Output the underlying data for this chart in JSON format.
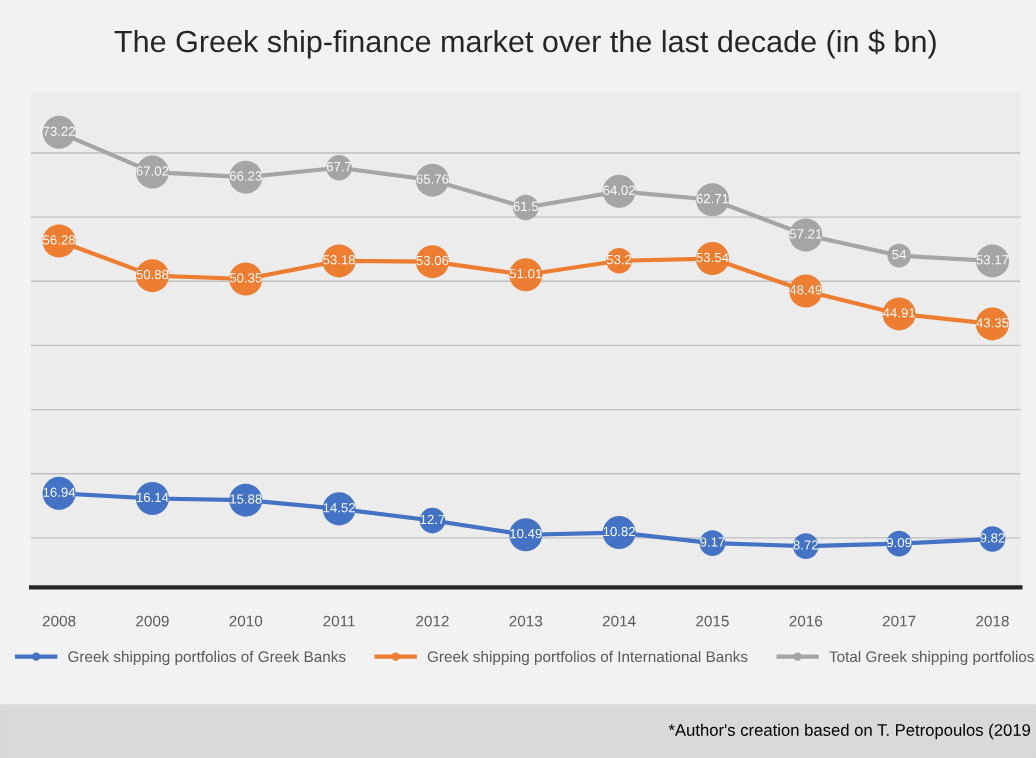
{
  "chart_data": {
    "type": "line",
    "title": "The Greek ship-finance market over the last decade (in $ bn)",
    "categories": [
      "2008",
      "2009",
      "2010",
      "2011",
      "2012",
      "2013",
      "2014",
      "2015",
      "2016",
      "2017",
      "2018"
    ],
    "series": [
      {
        "name": "Greek shipping portfolios of Greek Banks",
        "color": "#4472c4",
        "values": [
          16.94,
          16.14,
          15.88,
          14.52,
          12.7,
          10.49,
          10.82,
          9.17,
          8.72,
          9.09,
          9.82
        ]
      },
      {
        "name": "Greek shipping portfolios of International Banks",
        "color": "#ed7d31",
        "values": [
          56.28,
          50.88,
          50.35,
          53.18,
          53.06,
          51.01,
          53.2,
          53.54,
          48.49,
          44.91,
          43.35
        ]
      },
      {
        "name": "Total Greek shipping portfolios",
        "color": "#a5a5a5",
        "values": [
          73.22,
          67.02,
          66.23,
          67.7,
          65.76,
          61.5,
          64.02,
          62.71,
          57.21,
          54,
          53.17
        ]
      }
    ],
    "tick_labels": "x",
    "grid": "y",
    "legend": "bottom",
    "marker": "circle",
    "line_style": "solid",
    "data_labels": true,
    "annotations": [
      "*Author's creation based on T. Petropoulos (2019"
    ]
  }
}
